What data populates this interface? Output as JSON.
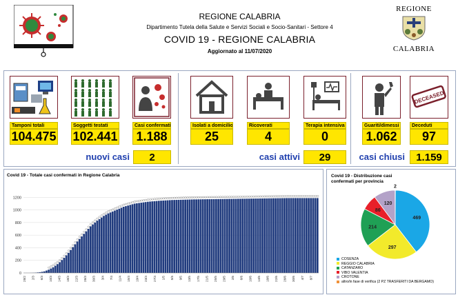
{
  "header": {
    "region": "REGIONE CALABRIA",
    "department": "Dipartimento Tutela della Salute e Servizi Sociali e Socio-Sanitari - Settore 4",
    "title": "COVID 19 - REGIONE CALABRIA",
    "updated": "Aggiornato al  11/07/2020",
    "logo_top": "REGIONE",
    "logo_bottom": "CALABRIA"
  },
  "stats": {
    "tamponi": {
      "label": "Tamponi totali",
      "value": "104.475",
      "icon": "lab-equipment-icon"
    },
    "soggetti": {
      "label": "Soggetti testati",
      "value": "102.441",
      "icon": "people-grid-icon"
    },
    "confermati": {
      "label": "Casi confermati",
      "value": "1.188",
      "icon": "infected-person-icon"
    },
    "isolati": {
      "label": "Isolati a domicilio",
      "value": "25",
      "icon": "house-icon"
    },
    "ricoverati": {
      "label": "Ricoverati",
      "value": "4",
      "icon": "hospital-bed-icon"
    },
    "terapia": {
      "label": "Terapia intensiva",
      "value": "0",
      "icon": "intensive-care-icon"
    },
    "guariti": {
      "label": "Guariti/dimessi",
      "value": "1.062",
      "icon": "recovered-person-icon"
    },
    "deceduti": {
      "label": "Deceduti",
      "value": "97",
      "icon": "deceased-stamp-icon"
    }
  },
  "summary": {
    "nuovi_label": "nuovi casi",
    "nuovi_value": "2",
    "attivi_label": "casi attivi",
    "attivi_value": "29",
    "chiusi_label": "casi chiusi",
    "chiusi_value": "1.159"
  },
  "stamp_text": "DECEASED",
  "colors": {
    "bar": "#1f3a7d",
    "yellow": "#ffe600",
    "blue_text": "#1f3fae",
    "border": "#9aa7c0"
  },
  "chart_data": [
    {
      "type": "bar",
      "title": "Covid 19 - Totale casi confermati in Regione Calabria",
      "ylim": [
        0,
        1400
      ],
      "yticks": [
        "0",
        "200",
        "400",
        "600",
        "800",
        "1000",
        "1200"
      ],
      "xticks": [
        "28/2",
        "2/3",
        "6/3",
        "10/3",
        "14/3",
        "18/3",
        "22/3",
        "26/3",
        "30/3",
        "3/4",
        "7/4",
        "11/4",
        "15/4",
        "19/4",
        "23/4",
        "27/4",
        "1/5",
        "5/5",
        "9/5",
        "13/5",
        "17/5",
        "21/5",
        "25/5",
        "29/5",
        "2/6",
        "6/6",
        "10/6",
        "14/6",
        "18/6",
        "22/6",
        "26/6",
        "30/6",
        "4/7",
        "8/7"
      ],
      "values": [
        1,
        1,
        1,
        2,
        3,
        5,
        8,
        12,
        18,
        25,
        38,
        52,
        70,
        90,
        115,
        140,
        170,
        205,
        240,
        280,
        320,
        365,
        410,
        455,
        500,
        540,
        580,
        620,
        660,
        700,
        740,
        770,
        800,
        830,
        855,
        880,
        905,
        925,
        945,
        960,
        975,
        990,
        1005,
        1020,
        1035,
        1050,
        1060,
        1070,
        1080,
        1090,
        1100,
        1105,
        1110,
        1115,
        1120,
        1125,
        1130,
        1133,
        1136,
        1139,
        1142,
        1145,
        1147,
        1149,
        1151,
        1153,
        1155,
        1157,
        1158,
        1159,
        1160,
        1161,
        1162,
        1163,
        1164,
        1165,
        1166,
        1167,
        1167,
        1168,
        1168,
        1169,
        1169,
        1170,
        1170,
        1171,
        1171,
        1172,
        1172,
        1173,
        1173,
        1174,
        1174,
        1175,
        1175,
        1176,
        1176,
        1177,
        1177,
        1178,
        1178,
        1179,
        1179,
        1180,
        1180,
        1181,
        1181,
        1182,
        1182,
        1183,
        1183,
        1184,
        1184,
        1185,
        1185,
        1186,
        1186,
        1187,
        1187,
        1188,
        1188,
        1188,
        1188,
        1188,
        1188,
        1188,
        1188,
        1188,
        1188,
        1188,
        1188,
        1188,
        1188,
        1188
      ]
    },
    {
      "type": "pie",
      "title": "Covid 19 - Distribuzione casi confermati per provincia",
      "slices": [
        {
          "name": "COSENZA",
          "value": 469,
          "color": "#1aa7e6"
        },
        {
          "name": "REGGIO CALABRIA",
          "value": 297,
          "color": "#f2ea2b"
        },
        {
          "name": "CATANZARO",
          "value": 214,
          "color": "#1fa055"
        },
        {
          "name": "VIBO VALENTIA",
          "value": 86,
          "color": "#e8202a"
        },
        {
          "name": "CROTONE",
          "value": 120,
          "color": "#b3a2c8"
        },
        {
          "name": "altro/in fase di verifica (2 PZ TRASFERITI DA BERGAMO)",
          "value": 2,
          "color": "#f0923a"
        }
      ]
    }
  ]
}
